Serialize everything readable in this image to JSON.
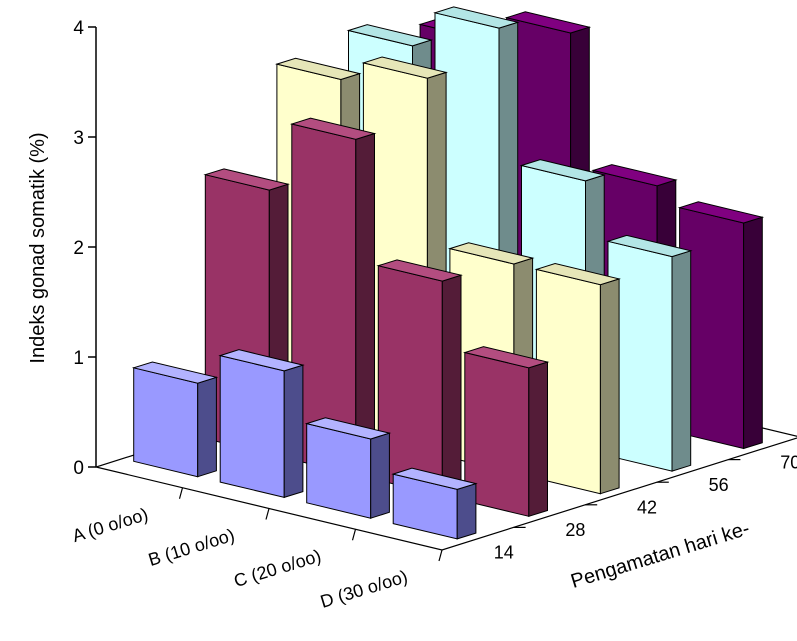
{
  "chart_data": {
    "type": "bar3d",
    "title": "",
    "ylabel": "Indeks gonad somatik (%)",
    "xlabel": "",
    "zlabel": "Pengamatan hari ke-",
    "ylim": [
      0,
      4
    ],
    "yticks": [
      0,
      1,
      2,
      3,
      4
    ],
    "categories": [
      "A (0 o/oo)",
      "B (10 o/oo)",
      "C (20 o/oo)",
      "D (30 o/oo)"
    ],
    "days": [
      "14",
      "28",
      "42",
      "56",
      "70"
    ],
    "series": [
      {
        "day": "14",
        "values": [
          0.85,
          1.15,
          0.72,
          0.45
        ]
      },
      {
        "day": "28",
        "values": [
          2.4,
          3.05,
          1.95,
          1.35
        ]
      },
      {
        "day": "42",
        "values": [
          3.2,
          3.4,
          1.9,
          1.9
        ]
      },
      {
        "day": "56",
        "values": [
          3.3,
          3.65,
          2.45,
          1.95
        ]
      },
      {
        "day": "70",
        "values": [
          3.15,
          3.4,
          2.2,
          2.05
        ]
      }
    ],
    "colors": {
      "14": {
        "front": "#9999ff",
        "side": "#4d4d8c",
        "top": "#b3b3ff"
      },
      "28": {
        "front": "#993366",
        "side": "#541c38",
        "top": "#b34d80"
      },
      "42": {
        "front": "#ffffcc",
        "side": "#8c8c6f",
        "top": "#e6e6b8"
      },
      "56": {
        "front": "#ccffff",
        "side": "#6f8c8c",
        "top": "#b3e6e6"
      },
      "70": {
        "front": "#660066",
        "side": "#380038",
        "top": "#800080"
      }
    }
  }
}
